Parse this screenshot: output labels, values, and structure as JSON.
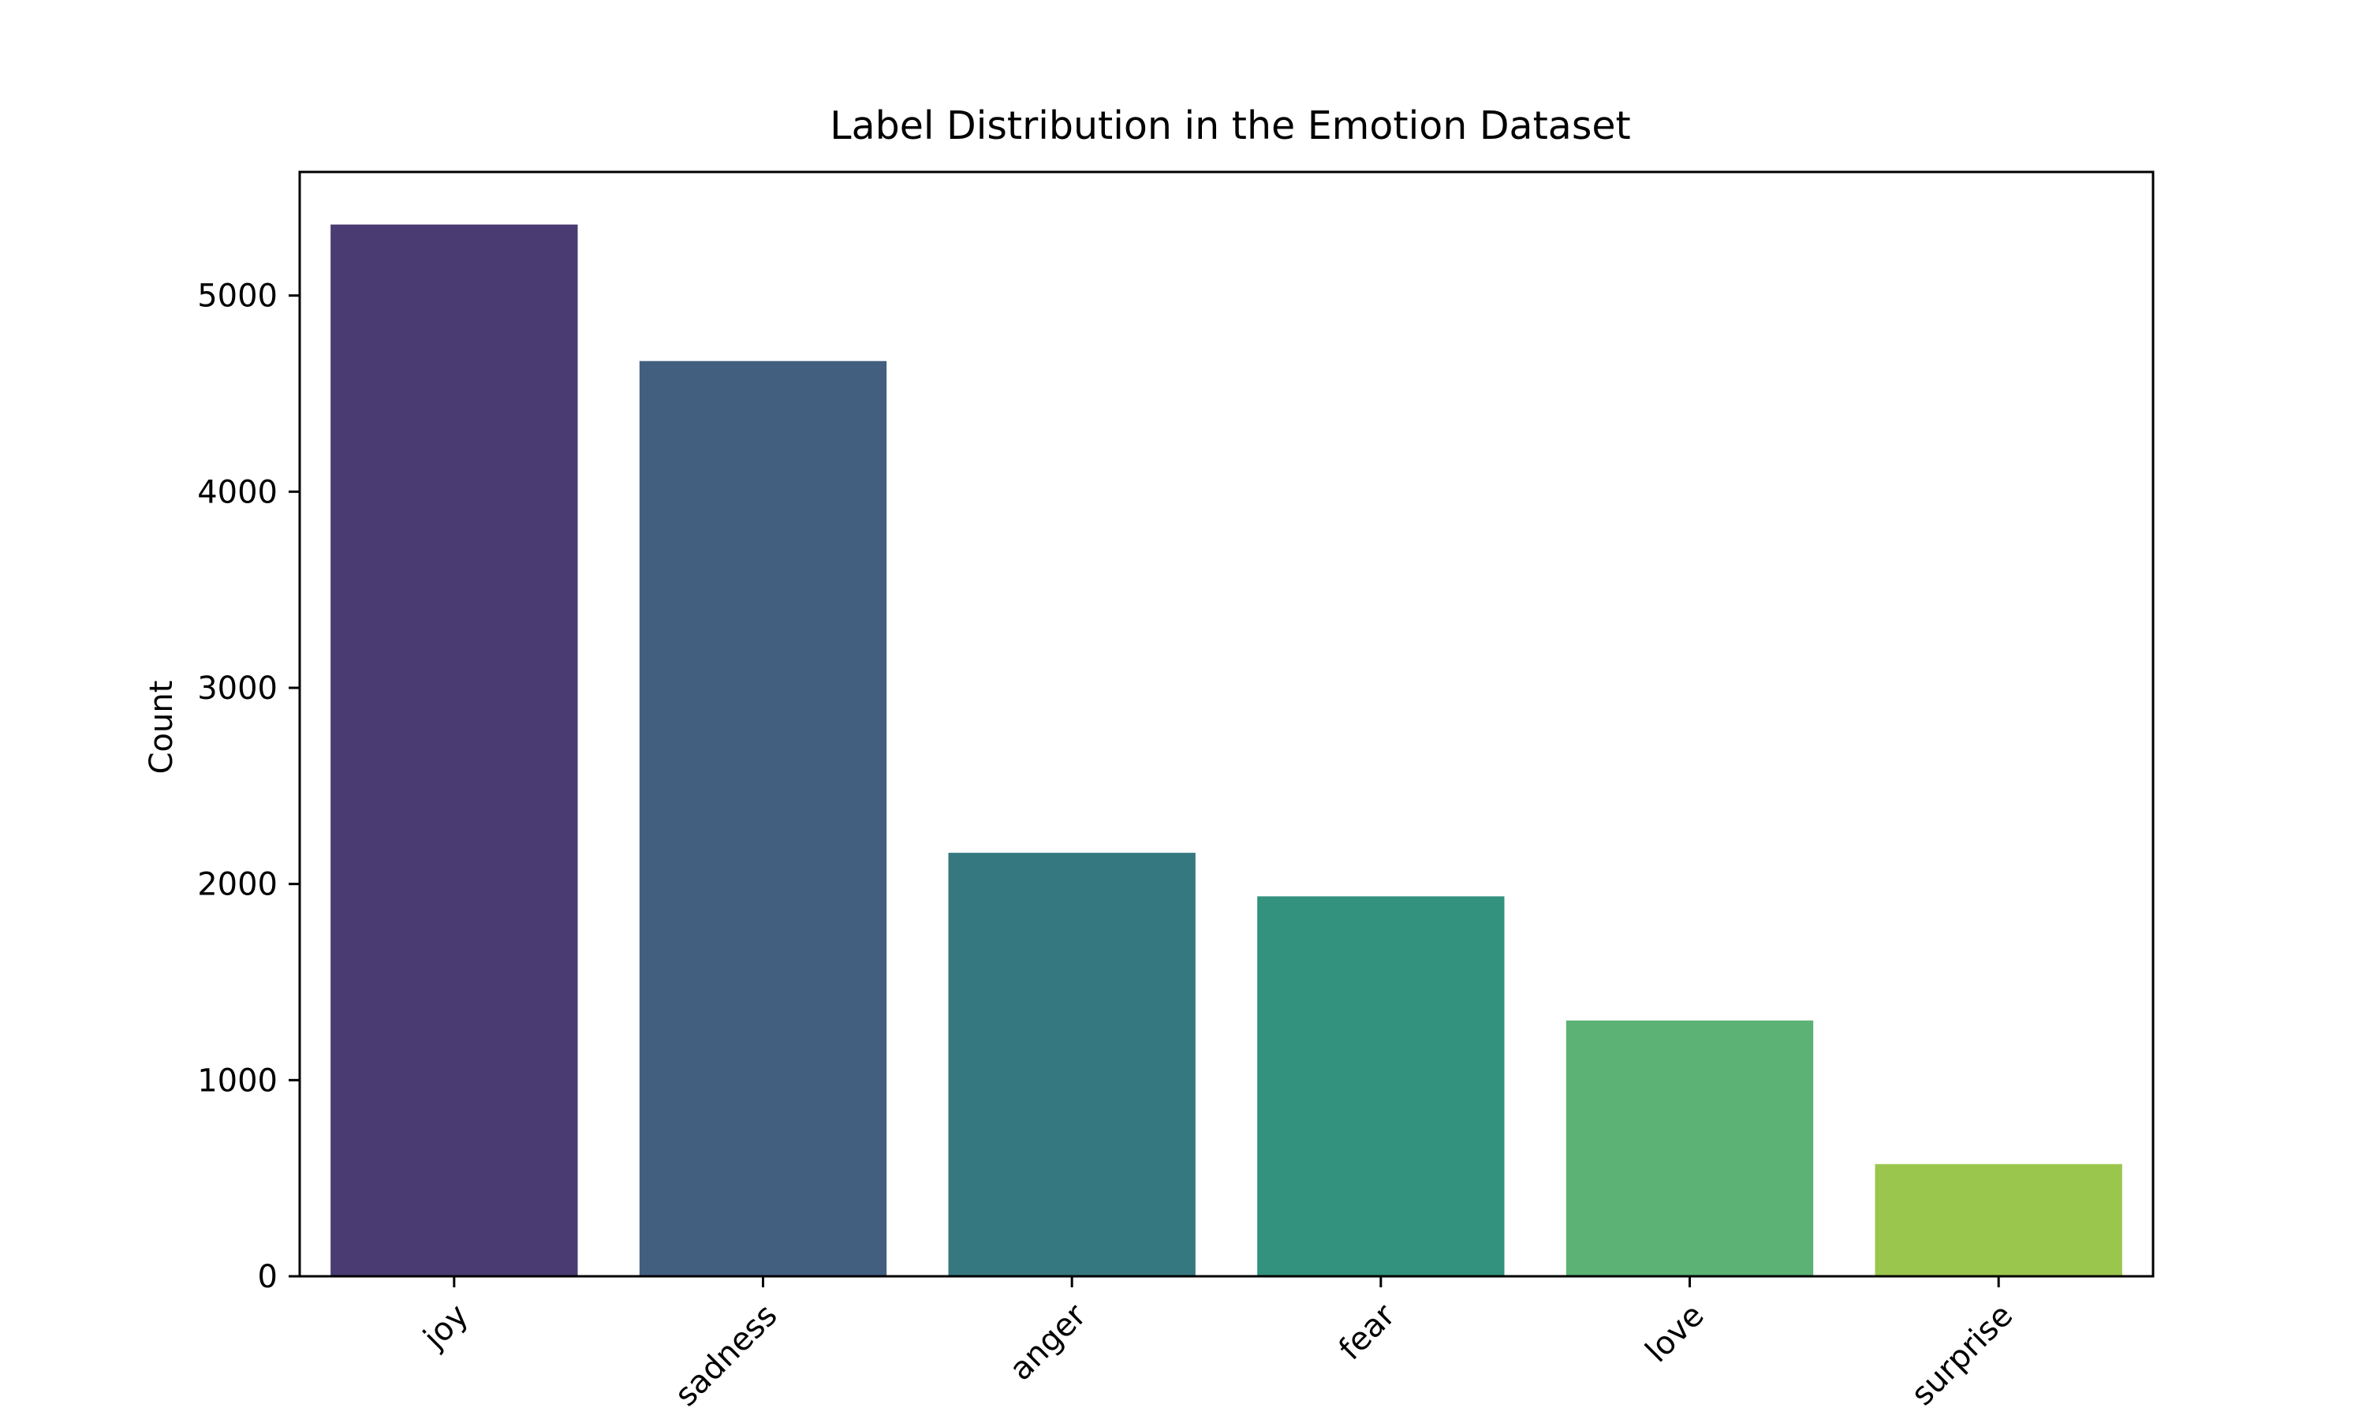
{
  "chart_data": {
    "type": "bar",
    "title": "Label Distribution in the Emotion Dataset",
    "xlabel": "",
    "ylabel": "Count",
    "categories": [
      "joy",
      "sadness",
      "anger",
      "fear",
      "love",
      "surprise"
    ],
    "values": [
      5362,
      4666,
      2159,
      1937,
      1304,
      572
    ],
    "colors": [
      "#4a3b73",
      "#425f80",
      "#357880",
      "#32927d",
      "#5bb274",
      "#9ac64e"
    ],
    "ylim": [
      0,
      5630
    ],
    "yticks": [
      0,
      1000,
      2000,
      3000,
      4000,
      5000
    ],
    "grid": false,
    "legend": "none"
  }
}
